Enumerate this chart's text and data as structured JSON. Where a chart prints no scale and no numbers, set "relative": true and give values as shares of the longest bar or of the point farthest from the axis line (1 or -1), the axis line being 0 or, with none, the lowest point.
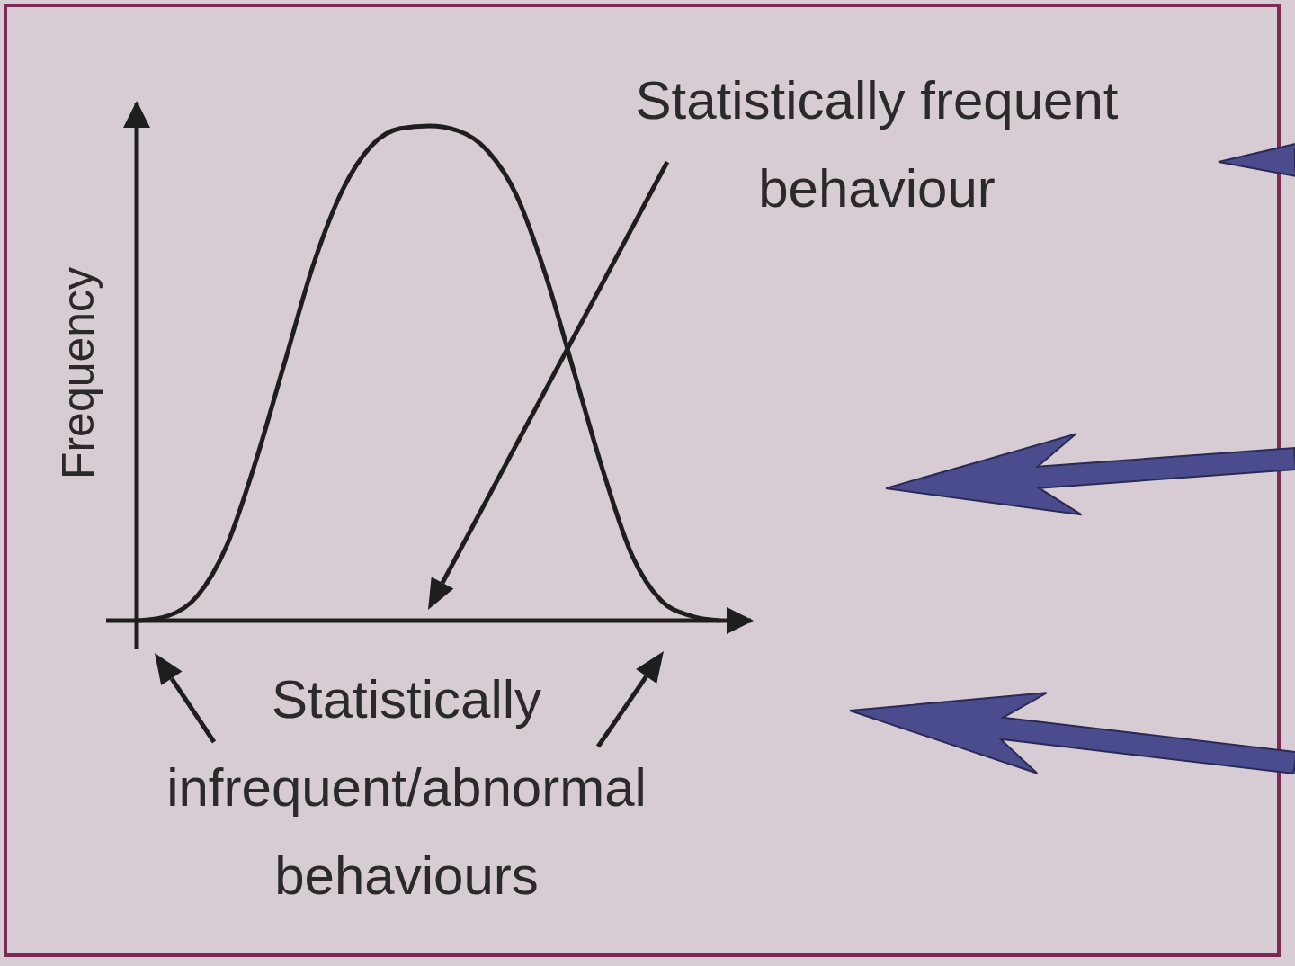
{
  "chart_data": {
    "type": "line",
    "relative": true,
    "ylabel": "Frequency",
    "line_style": "solid",
    "categories": [
      null,
      null,
      null,
      null,
      null,
      null,
      null,
      null,
      null,
      null,
      null,
      null,
      null,
      null,
      null,
      null,
      null,
      null,
      null,
      null,
      null
    ],
    "series": [
      {
        "color": "#1e1e1e",
        "values": [
          0,
          0.01,
          0.05,
          0.15,
          0.32,
          0.52,
          0.72,
          0.87,
          0.96,
          0.995,
          1,
          0.99,
          0.95,
          0.86,
          0.7,
          0.5,
          0.3,
          0.13,
          0.04,
          0.01,
          0
        ]
      }
    ],
    "annotations": [
      "Statistically frequent behaviour",
      "Statistically infrequent/abnormal behaviours"
    ]
  }
}
